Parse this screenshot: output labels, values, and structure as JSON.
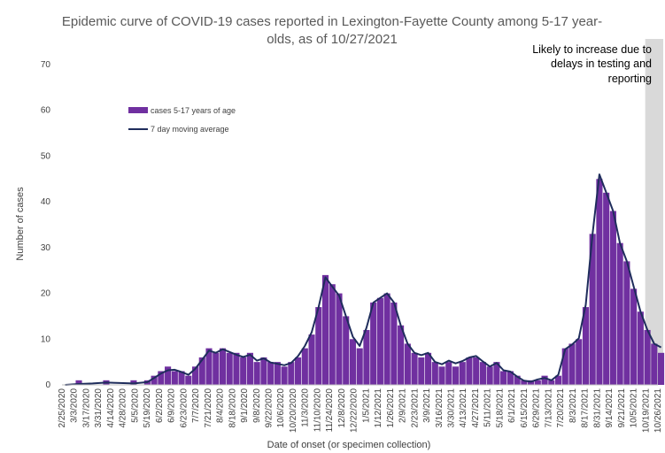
{
  "chart_data": {
    "type": "bar",
    "title_lines": [
      "Epidemic curve of COVID-19 cases reported in Lexington-Fayette County among 5-17 year-",
      "olds, as of 10/27/2021"
    ],
    "xlabel": "Date of onset (or specimen collection)",
    "ylabel": "Number of cases",
    "ylim": [
      0,
      70
    ],
    "yticks": [
      0,
      10,
      20,
      30,
      40,
      50,
      60,
      70
    ],
    "x_start_date": "2020-02-25",
    "x_end_date": "2021-10-26",
    "xtick_labels": [
      "2/25/2020",
      "3/3/2020",
      "3/17/2020",
      "3/31/2020",
      "4/14/2020",
      "4/28/2020",
      "5/5/2020",
      "5/19/2020",
      "6/2/2020",
      "6/9/2020",
      "6/23/2020",
      "7/7/2020",
      "7/21/2020",
      "8/4/2020",
      "8/18/2020",
      "9/1/2020",
      "9/8/2020",
      "9/22/2020",
      "10/6/2020",
      "10/20/2020",
      "11/3/2020",
      "11/10/2020",
      "11/24/2020",
      "12/8/2020",
      "12/22/2020",
      "1/5/2021",
      "1/12/2021",
      "1/26/2021",
      "2/9/2021",
      "2/23/2021",
      "3/9/2021",
      "3/16/2021",
      "3/30/2021",
      "4/13/2021",
      "4/27/2021",
      "5/11/2021",
      "5/18/2021",
      "6/1/2021",
      "6/15/2021",
      "6/29/2021",
      "7/13/2021",
      "7/20/2021",
      "8/3/2021",
      "8/17/2021",
      "8/31/2021",
      "9/14/2021",
      "9/21/2021",
      "10/5/2021",
      "10/19/2021",
      "10/26/2021"
    ],
    "series": [
      {
        "name": "cases 5-17 years of age",
        "kind": "bar",
        "color": "#7030a0",
        "points": [
          [
            "2020-02-25",
            0
          ],
          [
            "2020-03-10",
            1
          ],
          [
            "2020-03-24",
            0
          ],
          [
            "2020-04-07",
            1
          ],
          [
            "2020-04-21",
            0
          ],
          [
            "2020-05-05",
            1
          ],
          [
            "2020-05-19",
            1
          ],
          [
            "2020-05-26",
            2
          ],
          [
            "2020-06-02",
            3
          ],
          [
            "2020-06-09",
            4
          ],
          [
            "2020-06-16",
            3
          ],
          [
            "2020-06-23",
            3
          ],
          [
            "2020-06-30",
            2
          ],
          [
            "2020-07-07",
            4
          ],
          [
            "2020-07-14",
            6
          ],
          [
            "2020-07-21",
            8
          ],
          [
            "2020-07-28",
            7
          ],
          [
            "2020-08-04",
            8
          ],
          [
            "2020-08-11",
            7
          ],
          [
            "2020-08-18",
            7
          ],
          [
            "2020-08-25",
            6
          ],
          [
            "2020-09-01",
            7
          ],
          [
            "2020-09-08",
            5
          ],
          [
            "2020-09-15",
            6
          ],
          [
            "2020-09-22",
            5
          ],
          [
            "2020-09-29",
            5
          ],
          [
            "2020-10-06",
            4
          ],
          [
            "2020-10-13",
            5
          ],
          [
            "2020-10-20",
            6
          ],
          [
            "2020-10-27",
            8
          ],
          [
            "2020-11-03",
            11
          ],
          [
            "2020-11-10",
            17
          ],
          [
            "2020-11-17",
            24
          ],
          [
            "2020-11-24",
            22
          ],
          [
            "2020-12-01",
            20
          ],
          [
            "2020-12-08",
            15
          ],
          [
            "2020-12-15",
            10
          ],
          [
            "2020-12-22",
            8
          ],
          [
            "2020-12-29",
            12
          ],
          [
            "2021-01-05",
            18
          ],
          [
            "2021-01-12",
            19
          ],
          [
            "2021-01-19",
            20
          ],
          [
            "2021-01-26",
            18
          ],
          [
            "2021-02-02",
            13
          ],
          [
            "2021-02-09",
            9
          ],
          [
            "2021-02-16",
            7
          ],
          [
            "2021-02-23",
            6
          ],
          [
            "2021-03-02",
            7
          ],
          [
            "2021-03-09",
            5
          ],
          [
            "2021-03-16",
            4
          ],
          [
            "2021-03-23",
            5
          ],
          [
            "2021-03-30",
            4
          ],
          [
            "2021-04-06",
            5
          ],
          [
            "2021-04-13",
            6
          ],
          [
            "2021-04-20",
            6
          ],
          [
            "2021-04-27",
            5
          ],
          [
            "2021-05-04",
            4
          ],
          [
            "2021-05-11",
            5
          ],
          [
            "2021-05-18",
            3
          ],
          [
            "2021-05-25",
            3
          ],
          [
            "2021-06-01",
            2
          ],
          [
            "2021-06-08",
            1
          ],
          [
            "2021-06-15",
            1
          ],
          [
            "2021-06-22",
            1
          ],
          [
            "2021-06-29",
            2
          ],
          [
            "2021-07-06",
            1
          ],
          [
            "2021-07-13",
            2
          ],
          [
            "2021-07-20",
            8
          ],
          [
            "2021-07-27",
            9
          ],
          [
            "2021-08-03",
            10
          ],
          [
            "2021-08-10",
            17
          ],
          [
            "2021-08-17",
            33
          ],
          [
            "2021-08-24",
            45
          ],
          [
            "2021-08-31",
            42
          ],
          [
            "2021-09-07",
            38
          ],
          [
            "2021-09-14",
            31
          ],
          [
            "2021-09-21",
            27
          ],
          [
            "2021-09-28",
            21
          ],
          [
            "2021-10-05",
            16
          ],
          [
            "2021-10-12",
            12
          ],
          [
            "2021-10-19",
            9
          ],
          [
            "2021-10-26",
            7
          ]
        ]
      },
      {
        "name": "7 day moving average",
        "kind": "line",
        "color": "#1f2d5c",
        "points": [
          [
            "2020-02-25",
            0
          ],
          [
            "2020-03-10",
            0.2
          ],
          [
            "2020-03-24",
            0.3
          ],
          [
            "2020-04-07",
            0.5
          ],
          [
            "2020-04-21",
            0.4
          ],
          [
            "2020-05-05",
            0.3
          ],
          [
            "2020-05-19",
            0.6
          ],
          [
            "2020-05-26",
            1.5
          ],
          [
            "2020-06-02",
            2.5
          ],
          [
            "2020-06-09",
            3.2
          ],
          [
            "2020-06-16",
            3.3
          ],
          [
            "2020-06-23",
            2.8
          ],
          [
            "2020-06-30",
            2.2
          ],
          [
            "2020-07-07",
            3.5
          ],
          [
            "2020-07-14",
            5.5
          ],
          [
            "2020-07-21",
            7.5
          ],
          [
            "2020-07-28",
            7
          ],
          [
            "2020-08-04",
            7.8
          ],
          [
            "2020-08-11",
            7.2
          ],
          [
            "2020-08-18",
            6.6
          ],
          [
            "2020-08-25",
            6.1
          ],
          [
            "2020-09-01",
            6.6
          ],
          [
            "2020-09-08",
            5.3
          ],
          [
            "2020-09-15",
            5.8
          ],
          [
            "2020-09-22",
            4.9
          ],
          [
            "2020-09-29",
            4.6
          ],
          [
            "2020-10-06",
            4.3
          ],
          [
            "2020-10-13",
            4.8
          ],
          [
            "2020-10-20",
            6.3
          ],
          [
            "2020-10-27",
            8.5
          ],
          [
            "2020-11-03",
            11.5
          ],
          [
            "2020-11-10",
            17
          ],
          [
            "2020-11-17",
            23.5
          ],
          [
            "2020-11-24",
            21.5
          ],
          [
            "2020-12-01",
            19.5
          ],
          [
            "2020-12-08",
            15
          ],
          [
            "2020-12-15",
            10.5
          ],
          [
            "2020-12-22",
            8.5
          ],
          [
            "2020-12-29",
            12.5
          ],
          [
            "2021-01-05",
            18
          ],
          [
            "2021-01-12",
            19
          ],
          [
            "2021-01-19",
            20
          ],
          [
            "2021-01-26",
            18
          ],
          [
            "2021-02-02",
            13
          ],
          [
            "2021-02-09",
            9
          ],
          [
            "2021-02-16",
            7
          ],
          [
            "2021-02-23",
            6.5
          ],
          [
            "2021-03-02",
            7
          ],
          [
            "2021-03-09",
            5
          ],
          [
            "2021-03-16",
            4.5
          ],
          [
            "2021-03-23",
            5.3
          ],
          [
            "2021-03-30",
            4.7
          ],
          [
            "2021-04-06",
            5.2
          ],
          [
            "2021-04-13",
            6
          ],
          [
            "2021-04-20",
            6.3
          ],
          [
            "2021-04-27",
            5.1
          ],
          [
            "2021-05-04",
            4
          ],
          [
            "2021-05-11",
            4.8
          ],
          [
            "2021-05-18",
            3.2
          ],
          [
            "2021-05-25",
            2.9
          ],
          [
            "2021-06-01",
            1.8
          ],
          [
            "2021-06-08",
            0.9
          ],
          [
            "2021-06-15",
            0.7
          ],
          [
            "2021-06-22",
            1.2
          ],
          [
            "2021-06-29",
            1.5
          ],
          [
            "2021-07-06",
            1
          ],
          [
            "2021-07-13",
            2.2
          ],
          [
            "2021-07-20",
            7.8
          ],
          [
            "2021-07-27",
            8.8
          ],
          [
            "2021-08-03",
            10.2
          ],
          [
            "2021-08-10",
            17.5
          ],
          [
            "2021-08-17",
            33
          ],
          [
            "2021-08-24",
            46
          ],
          [
            "2021-08-31",
            42
          ],
          [
            "2021-09-07",
            38
          ],
          [
            "2021-09-14",
            31
          ],
          [
            "2021-09-21",
            27
          ],
          [
            "2021-09-28",
            21.5
          ],
          [
            "2021-10-05",
            16
          ],
          [
            "2021-10-12",
            12
          ],
          [
            "2021-10-19",
            9
          ],
          [
            "2021-10-26",
            8.2
          ]
        ]
      }
    ],
    "shaded_region": {
      "start_date": "2021-10-13",
      "end_date": "2021-10-26",
      "color": "#d9d9d9"
    },
    "annotation_lines": [
      "Likely to increase due to",
      "delays in testing and",
      "reporting"
    ],
    "legend_position": "upper-left"
  }
}
